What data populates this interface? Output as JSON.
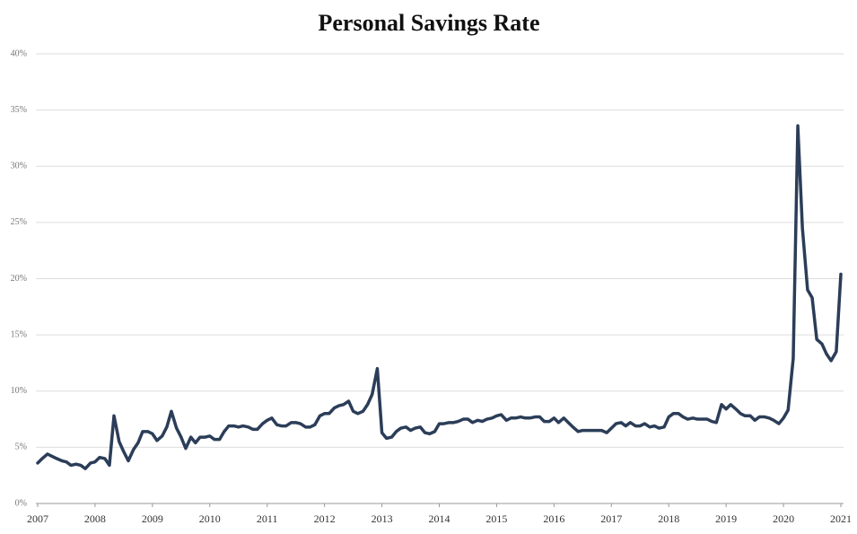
{
  "chart_data": {
    "type": "line",
    "title": "Personal Savings Rate",
    "x": [
      2007,
      2007.08,
      2007.17,
      2007.25,
      2007.33,
      2007.42,
      2007.5,
      2007.58,
      2007.67,
      2007.75,
      2007.83,
      2007.92,
      2008,
      2008.08,
      2008.17,
      2008.25,
      2008.33,
      2008.42,
      2008.5,
      2008.58,
      2008.67,
      2008.75,
      2008.83,
      2008.92,
      2009,
      2009.08,
      2009.17,
      2009.25,
      2009.33,
      2009.42,
      2009.5,
      2009.58,
      2009.67,
      2009.75,
      2009.83,
      2009.92,
      2010,
      2010.08,
      2010.17,
      2010.25,
      2010.33,
      2010.42,
      2010.5,
      2010.58,
      2010.67,
      2010.75,
      2010.83,
      2010.92,
      2011,
      2011.08,
      2011.17,
      2011.25,
      2011.33,
      2011.42,
      2011.5,
      2011.58,
      2011.67,
      2011.75,
      2011.83,
      2011.92,
      2012,
      2012.08,
      2012.17,
      2012.25,
      2012.33,
      2012.42,
      2012.5,
      2012.58,
      2012.67,
      2012.75,
      2012.83,
      2012.92,
      2013,
      2013.08,
      2013.17,
      2013.25,
      2013.33,
      2013.42,
      2013.5,
      2013.58,
      2013.67,
      2013.75,
      2013.83,
      2013.92,
      2014,
      2014.08,
      2014.17,
      2014.25,
      2014.33,
      2014.42,
      2014.5,
      2014.58,
      2014.67,
      2014.75,
      2014.83,
      2014.92,
      2015,
      2015.08,
      2015.17,
      2015.25,
      2015.33,
      2015.42,
      2015.5,
      2015.58,
      2015.67,
      2015.75,
      2015.83,
      2015.92,
      2016,
      2016.08,
      2016.17,
      2016.25,
      2016.33,
      2016.42,
      2016.5,
      2016.58,
      2016.67,
      2016.75,
      2016.83,
      2016.92,
      2017,
      2017.08,
      2017.17,
      2017.25,
      2017.33,
      2017.42,
      2017.5,
      2017.58,
      2017.67,
      2017.75,
      2017.83,
      2017.92,
      2018,
      2018.08,
      2018.17,
      2018.25,
      2018.33,
      2018.42,
      2018.5,
      2018.58,
      2018.67,
      2018.75,
      2018.83,
      2018.92,
      2019,
      2019.08,
      2019.17,
      2019.25,
      2019.33,
      2019.42,
      2019.5,
      2019.58,
      2019.67,
      2019.75,
      2019.83,
      2019.92,
      2020,
      2020.08,
      2020.17,
      2020.25,
      2020.33,
      2020.42,
      2020.5,
      2020.58,
      2020.67,
      2020.75,
      2020.83,
      2020.92,
      2021
    ],
    "series": [
      {
        "color": "#2b3d58",
        "values": [
          3.6,
          4.0,
          4.4,
          4.2,
          4.0,
          3.8,
          3.7,
          3.4,
          3.5,
          3.4,
          3.1,
          3.6,
          3.7,
          4.1,
          4.0,
          3.4,
          7.8,
          5.5,
          4.6,
          3.8,
          4.8,
          5.4,
          6.4,
          6.4,
          6.2,
          5.6,
          6.0,
          6.8,
          8.2,
          6.7,
          5.9,
          4.9,
          5.9,
          5.4,
          5.9,
          5.9,
          6.0,
          5.7,
          5.7,
          6.4,
          6.9,
          6.9,
          6.8,
          6.9,
          6.8,
          6.6,
          6.6,
          7.1,
          7.4,
          7.6,
          7.0,
          6.9,
          6.9,
          7.2,
          7.2,
          7.1,
          6.8,
          6.8,
          7.0,
          7.8,
          8.0,
          8.0,
          8.5,
          8.7,
          8.8,
          9.1,
          8.2,
          8.0,
          8.2,
          8.8,
          9.7,
          12.0,
          6.3,
          5.8,
          5.9,
          6.4,
          6.7,
          6.8,
          6.5,
          6.7,
          6.8,
          6.3,
          6.2,
          6.4,
          7.1,
          7.1,
          7.2,
          7.2,
          7.3,
          7.5,
          7.5,
          7.2,
          7.4,
          7.3,
          7.5,
          7.6,
          7.8,
          7.9,
          7.4,
          7.6,
          7.6,
          7.7,
          7.6,
          7.6,
          7.7,
          7.7,
          7.3,
          7.3,
          7.6,
          7.2,
          7.6,
          7.2,
          6.8,
          6.4,
          6.5,
          6.5,
          6.5,
          6.5,
          6.5,
          6.3,
          6.7,
          7.1,
          7.2,
          6.9,
          7.2,
          6.9,
          6.9,
          7.1,
          6.8,
          6.9,
          6.7,
          6.8,
          7.7,
          8.0,
          8.0,
          7.7,
          7.5,
          7.6,
          7.5,
          7.5,
          7.5,
          7.3,
          7.2,
          8.8,
          8.4,
          8.8,
          8.4,
          8.0,
          7.8,
          7.8,
          7.4,
          7.7,
          7.7,
          7.6,
          7.4,
          7.1,
          7.6,
          8.3,
          12.9,
          33.6,
          24.5,
          19.0,
          18.3,
          14.6,
          14.2,
          13.3,
          12.7,
          13.5,
          20.4
        ]
      }
    ],
    "xlim": [
      2007,
      2021
    ],
    "xticks": [
      2007,
      2008,
      2009,
      2010,
      2011,
      2012,
      2013,
      2014,
      2015,
      2016,
      2017,
      2018,
      2019,
      2020,
      2021
    ],
    "ylim": [
      0,
      40
    ],
    "yticks": [
      {
        "value": 0,
        "label": "0%"
      },
      {
        "value": 5,
        "label": "5%"
      },
      {
        "value": 10,
        "label": "10%"
      },
      {
        "value": 15,
        "label": "15%"
      },
      {
        "value": 20,
        "label": "20%"
      },
      {
        "value": 25,
        "label": "25%"
      },
      {
        "value": 30,
        "label": "30%"
      },
      {
        "value": 35,
        "label": "35%"
      },
      {
        "value": 40,
        "label": "40%"
      }
    ],
    "grid": true
  }
}
